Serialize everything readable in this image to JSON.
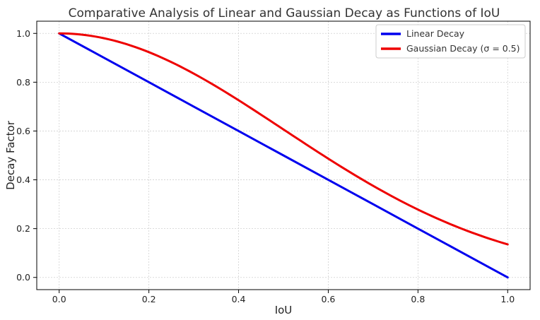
{
  "chart_data": {
    "type": "line",
    "title": "Comparative Analysis of Linear and Gaussian Decay as Functions of IoU",
    "xlabel": "IoU",
    "ylabel": "Decay Factor",
    "xlim": [
      -0.05,
      1.05
    ],
    "ylim": [
      -0.05,
      1.05
    ],
    "xticks": [
      "0.0",
      "0.2",
      "0.4",
      "0.6",
      "0.8",
      "1.0"
    ],
    "yticks": [
      "0.0",
      "0.2",
      "0.4",
      "0.6",
      "0.8",
      "1.0"
    ],
    "grid": true,
    "legend_position": "top-right",
    "x": [
      0.0,
      0.1,
      0.2,
      0.3,
      0.4,
      0.5,
      0.6,
      0.7,
      0.8,
      0.9,
      1.0
    ],
    "series": [
      {
        "name": "Linear Decay",
        "color": "#0000ee",
        "values": [
          1.0,
          0.9,
          0.8,
          0.7,
          0.6,
          0.5,
          0.4,
          0.3,
          0.2,
          0.1,
          0.0
        ]
      },
      {
        "name": "Gaussian Decay (σ = 0.5)",
        "color": "#ee0000",
        "values": [
          1.0,
          0.98,
          0.923,
          0.835,
          0.726,
          0.607,
          0.487,
          0.375,
          0.278,
          0.198,
          0.135
        ]
      }
    ]
  }
}
